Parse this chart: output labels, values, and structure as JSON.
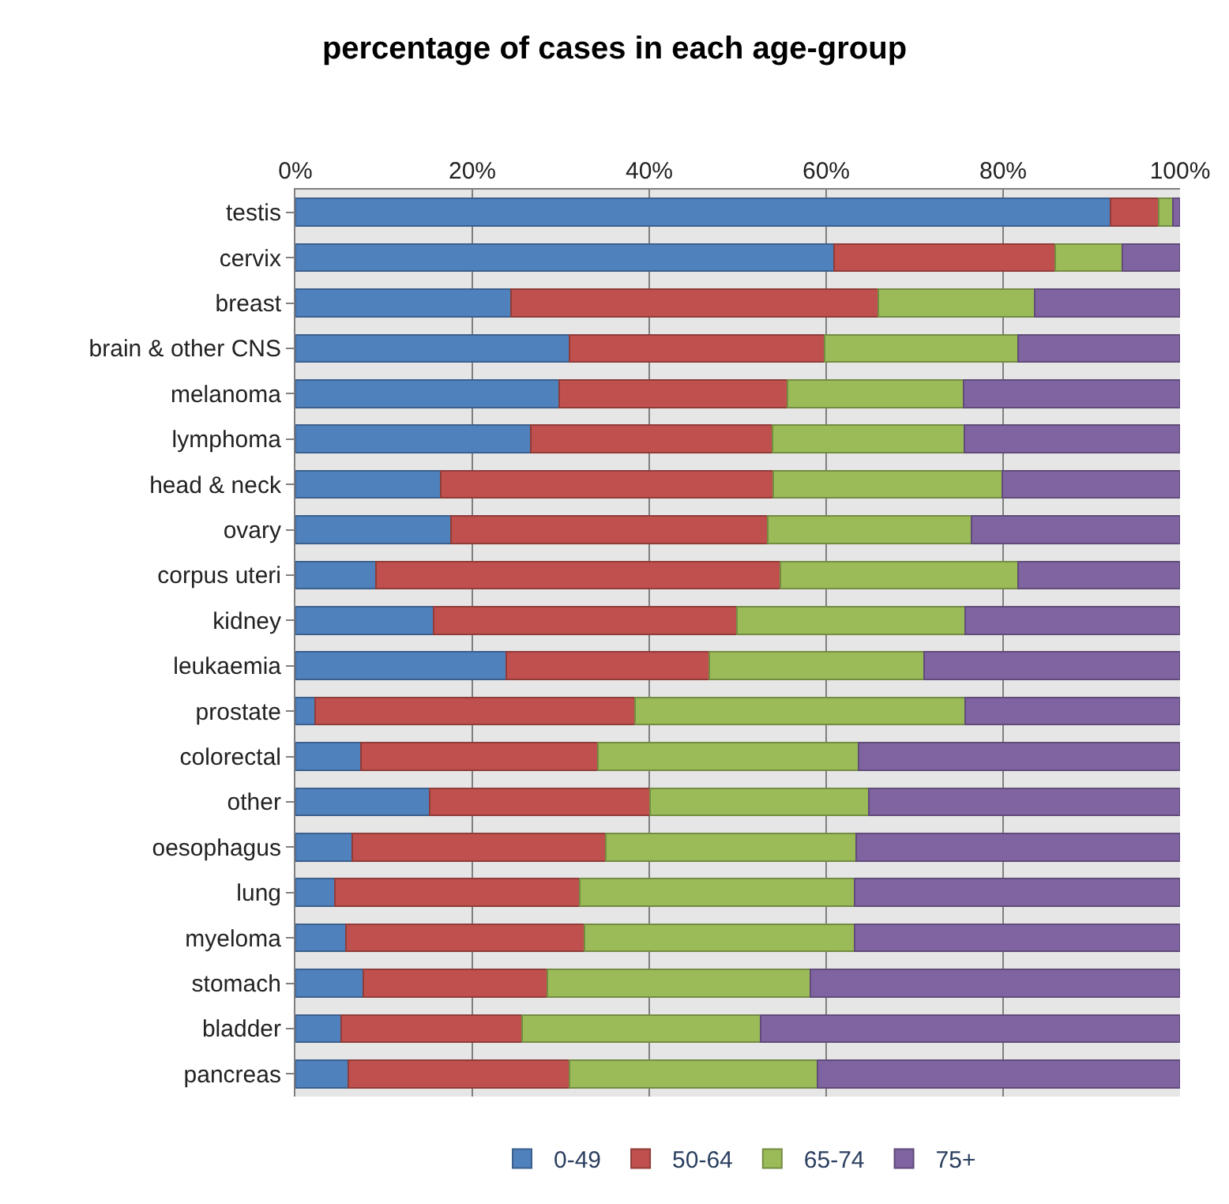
{
  "chart_data": {
    "type": "bar",
    "orientation": "horizontal",
    "stacked": true,
    "title": "percentage of cases in each age-group",
    "categories": [
      "testis",
      "cervix",
      "breast",
      "brain & other CNS",
      "melanoma",
      "lymphoma",
      "head & neck",
      "ovary",
      "corpus uteri",
      "kidney",
      "leukaemia",
      "prostate",
      "colorectal",
      "other",
      "oesophagus",
      "lung",
      "myeloma",
      "stomach",
      "bladder",
      "pancreas"
    ],
    "series": [
      {
        "name": "0-49",
        "color": "#4f81bd",
        "values": [
          92.1,
          60.9,
          24.4,
          31.0,
          29.8,
          26.6,
          16.4,
          17.6,
          9.1,
          15.6,
          23.8,
          2.2,
          7.4,
          15.2,
          6.4,
          4.5,
          5.7,
          7.7,
          5.2,
          6.0
        ]
      },
      {
        "name": "50-64",
        "color": "#c0504d",
        "values": [
          5.5,
          25.0,
          41.5,
          28.8,
          25.8,
          27.3,
          37.6,
          35.8,
          45.7,
          34.3,
          23.0,
          36.2,
          26.8,
          24.9,
          28.7,
          27.6,
          27.0,
          20.8,
          20.4,
          25.0
        ]
      },
      {
        "name": "65-74",
        "color": "#9bbb59",
        "values": [
          1.6,
          7.6,
          17.7,
          21.9,
          19.9,
          21.7,
          25.9,
          23.0,
          26.9,
          25.8,
          24.3,
          37.3,
          29.5,
          24.7,
          28.3,
          31.1,
          30.5,
          29.7,
          27.0,
          28.0
        ]
      },
      {
        "name": "75+",
        "color": "#8064a2",
        "values": [
          0.8,
          6.5,
          16.4,
          18.3,
          24.5,
          24.4,
          20.1,
          23.6,
          18.3,
          24.3,
          28.9,
          24.3,
          36.3,
          35.2,
          36.6,
          36.8,
          36.8,
          41.8,
          47.4,
          41.0
        ]
      }
    ],
    "xlim": [
      0,
      100
    ],
    "xticks": [
      {
        "value": 0,
        "label": "0%"
      },
      {
        "value": 20,
        "label": "20%"
      },
      {
        "value": 40,
        "label": "40%"
      },
      {
        "value": 60,
        "label": "60%"
      },
      {
        "value": 80,
        "label": "80%"
      },
      {
        "value": 100,
        "label": "100%"
      }
    ],
    "grid": "x",
    "legend": "bottom"
  }
}
